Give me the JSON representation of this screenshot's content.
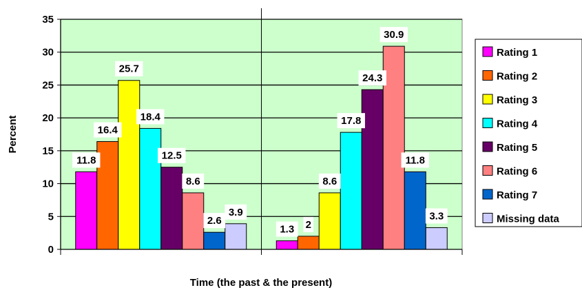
{
  "chart_data": {
    "type": "bar",
    "title": "",
    "xlabel": "Time (the past & the present)",
    "ylabel": "Percent",
    "ylim": [
      0,
      35
    ],
    "yticks": [
      "0",
      "5",
      "10",
      "15",
      "20",
      "25",
      "30",
      "35"
    ],
    "grid": true,
    "legend_position": "right",
    "plot_background": "#CCFFCC",
    "categories": [
      "",
      ""
    ],
    "series": [
      {
        "name": "Rating 1",
        "color": "#FF00FF",
        "values": [
          11.8,
          1.3
        ],
        "labels": [
          "11.8",
          "1.3"
        ]
      },
      {
        "name": "Rating 2",
        "color": "#FF6600",
        "values": [
          16.4,
          2.0
        ],
        "labels": [
          "16.4",
          "2"
        ]
      },
      {
        "name": "Rating 3",
        "color": "#FFFF00",
        "values": [
          25.7,
          8.6
        ],
        "labels": [
          "25.7",
          "8.6"
        ]
      },
      {
        "name": "Rating 4",
        "color": "#00FFFF",
        "values": [
          18.4,
          17.8
        ],
        "labels": [
          "18.4",
          "17.8"
        ]
      },
      {
        "name": "Rating 5",
        "color": "#660066",
        "values": [
          12.5,
          24.3
        ],
        "labels": [
          "12.5",
          "24.3"
        ]
      },
      {
        "name": "Rating 6",
        "color": "#FF8080",
        "values": [
          8.6,
          30.9
        ],
        "labels": [
          "8.6",
          "30.9"
        ]
      },
      {
        "name": "Rating 7",
        "color": "#0066CC",
        "values": [
          2.6,
          11.8
        ],
        "labels": [
          "2.6",
          "11.8"
        ]
      },
      {
        "name": "Missing data",
        "color": "#CCCCFF",
        "values": [
          3.9,
          3.3
        ],
        "labels": [
          "3.9",
          "3.3"
        ]
      }
    ]
  }
}
